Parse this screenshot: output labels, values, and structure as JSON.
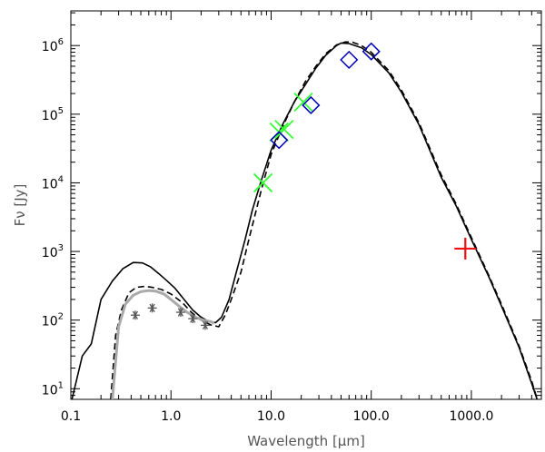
{
  "chart_data": {
    "type": "scatter",
    "title": "",
    "xlabel": "Wavelength [μm]",
    "ylabel": "Fν [Jy]",
    "xscale": "log",
    "yscale": "log",
    "xlim": [
      0.1,
      5000
    ],
    "ylim": [
      7,
      3200000
    ],
    "grid": false,
    "legend": "none",
    "x_ticks": [
      {
        "value": 0.1,
        "label": "0.1"
      },
      {
        "value": 1,
        "label": "1.0"
      },
      {
        "value": 10,
        "label": "10.0"
      },
      {
        "value": 100,
        "label": "100.0"
      },
      {
        "value": 1000,
        "label": "1000.0"
      }
    ],
    "y_ticks": [
      {
        "value": 10,
        "base": "10",
        "exp": "1"
      },
      {
        "value": 100,
        "base": "10",
        "exp": "2"
      },
      {
        "value": 1000,
        "base": "10",
        "exp": "3"
      },
      {
        "value": 10000,
        "base": "10",
        "exp": "4"
      },
      {
        "value": 100000,
        "base": "10",
        "exp": "5"
      },
      {
        "value": 1000000,
        "base": "10",
        "exp": "6"
      }
    ],
    "curves": [
      {
        "style": "solid",
        "color": "#000000",
        "x": [
          0.1,
          0.13,
          0.16,
          0.2,
          0.26,
          0.33,
          0.42,
          0.52,
          0.62,
          0.75,
          0.9,
          1.1,
          1.35,
          1.65,
          2.0,
          2.4,
          2.8,
          3.2,
          3.8,
          4.5,
          5.5,
          6.5,
          8,
          10,
          13,
          17,
          22,
          28,
          35,
          45,
          50,
          60,
          80,
          100,
          150,
          200,
          300,
          500,
          700,
          1000,
          1500,
          2000,
          3000,
          4000,
          4700
        ],
        "y": [
          6,
          30,
          45,
          200,
          370,
          560,
          690,
          680,
          600,
          480,
          380,
          290,
          200,
          140,
          110,
          95,
          92,
          110,
          200,
          500,
          1500,
          4000,
          11000,
          30000,
          70000,
          150000,
          270000,
          470000,
          720000,
          1000000,
          1090000,
          1070000,
          930000,
          740000,
          400000,
          210000,
          70000,
          12000,
          4700,
          1500,
          420,
          160,
          40,
          12,
          6
        ]
      },
      {
        "style": "dashed",
        "color": "#000000",
        "x": [
          0.25,
          0.28,
          0.32,
          0.38,
          0.45,
          0.55,
          0.65,
          0.8,
          1.0,
          1.3,
          1.6,
          2.0,
          2.5,
          3.0,
          3.5,
          4.0,
          5.0,
          6.0,
          8,
          10,
          13,
          17,
          22,
          28,
          35,
          45,
          55,
          65,
          80,
          100,
          150,
          200,
          300,
          500,
          700,
          1000,
          1500,
          2000,
          3000,
          4000,
          4700
        ],
        "y": [
          7,
          60,
          140,
          250,
          300,
          310,
          300,
          280,
          240,
          180,
          130,
          100,
          85,
          80,
          120,
          200,
          500,
          1500,
          8000,
          26000,
          65000,
          150000,
          300000,
          500000,
          760000,
          1020000,
          1130000,
          1120000,
          1000000,
          800000,
          430000,
          225000,
          75000,
          13000,
          5000,
          1600,
          440,
          170,
          42,
          13,
          6
        ]
      },
      {
        "style": "solid",
        "color": "#aaaaaa",
        "x": [
          0.26,
          0.3,
          0.35,
          0.42,
          0.5,
          0.6,
          0.7,
          0.85,
          1.0,
          1.2,
          1.45,
          1.75,
          2.1,
          2.5,
          2.7
        ],
        "y": [
          7,
          80,
          170,
          230,
          260,
          270,
          265,
          240,
          200,
          160,
          130,
          110,
          100,
          95,
          90
        ]
      }
    ],
    "points": [
      {
        "marker": "asterisk",
        "color": "#555555",
        "x": 0.44,
        "y": 118
      },
      {
        "marker": "asterisk",
        "color": "#555555",
        "x": 0.65,
        "y": 150
      },
      {
        "marker": "asterisk",
        "color": "#555555",
        "x": 1.25,
        "y": 130
      },
      {
        "marker": "asterisk",
        "color": "#555555",
        "x": 1.65,
        "y": 105
      },
      {
        "marker": "asterisk",
        "color": "#555555",
        "x": 2.2,
        "y": 84
      },
      {
        "marker": "x",
        "color": "#33ff33",
        "x": 8.3,
        "y": 10000
      },
      {
        "marker": "x",
        "color": "#33ff33",
        "x": 12.0,
        "y": 55000
      },
      {
        "marker": "x",
        "color": "#33ff33",
        "x": 13.5,
        "y": 60000
      },
      {
        "marker": "x",
        "color": "#33ff33",
        "x": 21.0,
        "y": 150000
      },
      {
        "marker": "diamond",
        "color": "#0000bb",
        "x": 12.0,
        "y": 42000
      },
      {
        "marker": "diamond",
        "color": "#0000bb",
        "x": 25.0,
        "y": 135000
      },
      {
        "marker": "diamond",
        "color": "#0000bb",
        "x": 60.0,
        "y": 620000
      },
      {
        "marker": "diamond",
        "color": "#0000bb",
        "x": 100.0,
        "y": 820000
      },
      {
        "marker": "plus",
        "color": "#ee1111",
        "x": 870,
        "y": 1100
      }
    ]
  }
}
